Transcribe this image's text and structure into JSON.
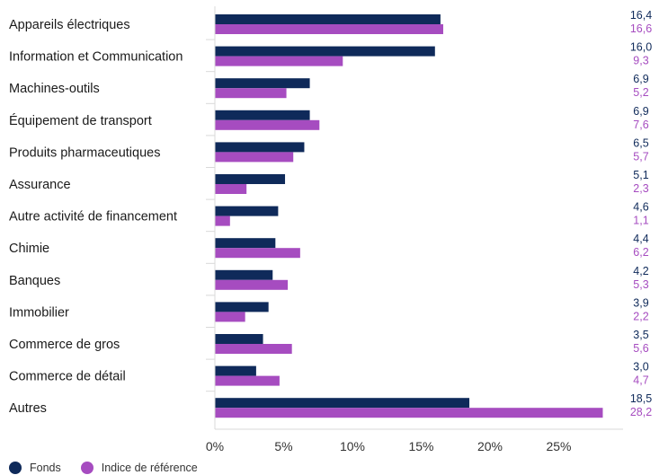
{
  "chart_data": {
    "type": "bar",
    "orientation": "horizontal",
    "categories": [
      "Appareils électriques",
      "Information et Communication",
      "Machines-outils",
      "Équipement de transport",
      "Produits pharmaceutiques",
      "Assurance",
      "Autre activité de financement",
      "Chimie",
      "Banques",
      "Immobilier",
      "Commerce de gros",
      "Commerce de détail",
      "Autres"
    ],
    "series": [
      {
        "name": "Fonds",
        "color": "#0f2a5a",
        "values": [
          16.4,
          16.0,
          6.9,
          6.9,
          6.5,
          5.1,
          4.6,
          4.4,
          4.2,
          3.9,
          3.5,
          3.0,
          18.5
        ],
        "value_labels": [
          "16,4",
          "16,0",
          "6,9",
          "6,9",
          "6,5",
          "5,1",
          "4,6",
          "4,4",
          "4,2",
          "3,9",
          "3,5",
          "3,0",
          "18,5"
        ]
      },
      {
        "name": "Indice de référence",
        "color": "#a64cc0",
        "values": [
          16.6,
          9.3,
          5.2,
          7.6,
          5.7,
          2.3,
          1.1,
          6.2,
          5.3,
          2.2,
          5.6,
          4.7,
          28.2
        ],
        "value_labels": [
          "16,6",
          "9,3",
          "5,2",
          "7,6",
          "5,7",
          "2,3",
          "1,1",
          "6,2",
          "5,3",
          "2,2",
          "5,6",
          "4,7",
          "28,2"
        ]
      }
    ],
    "xlim": [
      0,
      32
    ],
    "xticks": [
      0,
      5,
      10,
      15,
      20,
      25
    ],
    "xtick_labels": [
      "0%",
      "5%",
      "10%",
      "15%",
      "20%",
      "25%"
    ],
    "grid": false,
    "legend_position": "bottom-left"
  }
}
